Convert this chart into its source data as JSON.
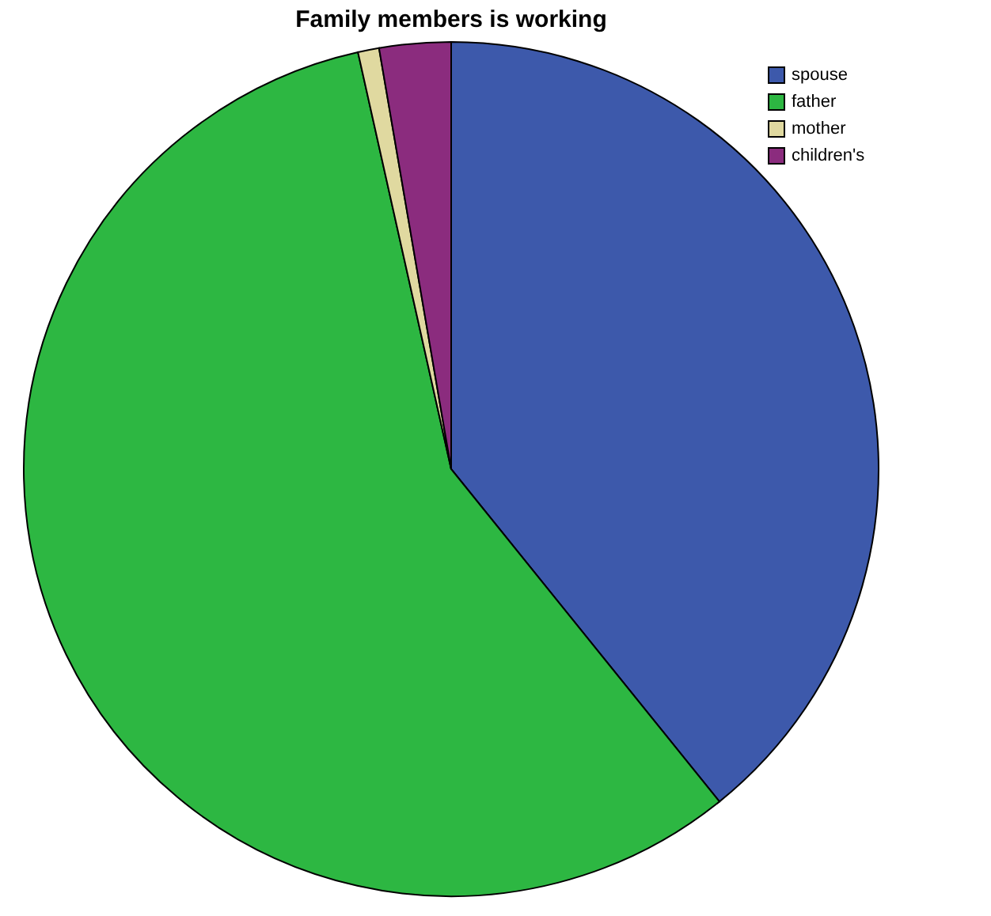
{
  "chart_data": {
    "type": "pie",
    "title": "Family members is working",
    "categories": [
      "spouse",
      "father",
      "mother",
      "children's"
    ],
    "values": [
      39.2,
      57.3,
      0.8,
      2.7
    ],
    "colors": [
      "#3d59ab",
      "#2db742",
      "#e0d9a0",
      "#8b2c7e"
    ],
    "legend": "top right"
  }
}
